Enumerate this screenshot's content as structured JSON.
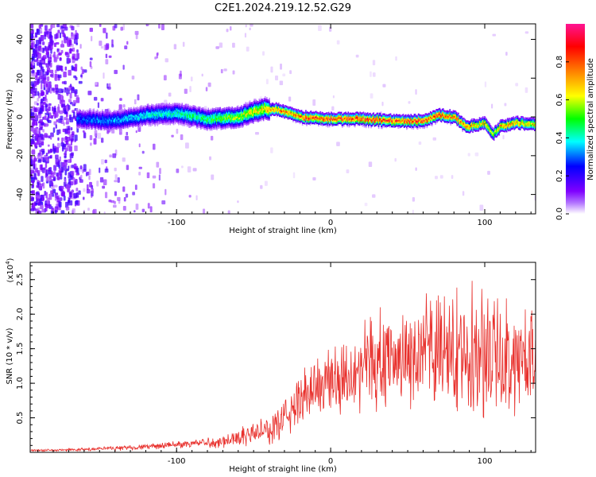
{
  "title": "C2E1.2024.219.12.52.G29",
  "colors": {
    "snr_line": "#e8302c",
    "axis": "#000000"
  },
  "chart_data": [
    {
      "type": "heatmap",
      "name": "spectrogram",
      "xlabel": "Height of straight line (km)",
      "ylabel": "Frequency (Hz)",
      "xlim": [
        -195,
        133
      ],
      "ylim": [
        -50,
        48
      ],
      "xticks": [
        -100,
        0,
        100
      ],
      "yticks": [
        -40,
        -20,
        0,
        20,
        40
      ],
      "xtick_labels": [
        "-100",
        "0",
        "100"
      ],
      "ytick_labels": [
        "-40",
        "-20",
        "0",
        "20",
        "40"
      ],
      "colorbar": {
        "label": "Normalized spectral amplitude",
        "range": [
          0,
          1
        ],
        "ticks": [
          0.0,
          0.2,
          0.4,
          0.6,
          0.8
        ],
        "tick_labels": [
          "0.0",
          "0.2",
          "0.4",
          "0.6",
          "0.8"
        ],
        "colormap": [
          "#ffffff",
          "#7f00ff",
          "#0000ff",
          "#00ffff",
          "#00ff00",
          "#ffff00",
          "#ff8000",
          "#ff0000",
          "#ff1493"
        ]
      },
      "ridge": {
        "x": [
          -165,
          -140,
          -120,
          -100,
          -80,
          -60,
          -45,
          -35,
          -20,
          0,
          20,
          40,
          60,
          70,
          80,
          88,
          95,
          100,
          105,
          110,
          120,
          133
        ],
        "freq_hz": [
          -1,
          -2,
          1,
          2,
          -1,
          0,
          4,
          4,
          0,
          -1,
          -1,
          -2,
          -2,
          1,
          0,
          -5,
          -4,
          -3,
          -9,
          -5,
          -3,
          -4
        ],
        "peak_amplitude": [
          0.3,
          0.35,
          0.4,
          0.45,
          0.5,
          0.6,
          0.7,
          0.8,
          0.85,
          0.9,
          0.9,
          0.88,
          0.9,
          0.88,
          0.85,
          0.8,
          0.7,
          0.75,
          0.6,
          0.75,
          0.75,
          0.7
        ]
      }
    },
    {
      "type": "line",
      "name": "snr",
      "xlabel": "Height of straight line (km)",
      "ylabel": "SNR (10 * v/v)",
      "y_multiplier": "(x10",
      "y_multiplier_exp": "4",
      "y_multiplier_close": ")",
      "xlim": [
        -195,
        133
      ],
      "ylim": [
        0,
        2.75
      ],
      "xticks": [
        -100,
        0,
        100
      ],
      "yticks": [
        0.5,
        1.0,
        1.5,
        2.0,
        2.5
      ],
      "xtick_labels": [
        "-100",
        "0",
        "100"
      ],
      "ytick_labels": [
        "0.5",
        "1.0",
        "1.5",
        "2.0",
        "2.5"
      ],
      "series": [
        {
          "name": "SNR",
          "x": [
            -195,
            -180,
            -160,
            -140,
            -120,
            -100,
            -90,
            -80,
            -70,
            -60,
            -50,
            -45,
            -40,
            -35,
            -30,
            -25,
            -20,
            -15,
            -10,
            -5,
            0,
            10,
            20,
            30,
            40,
            50,
            60,
            70,
            80,
            90,
            100,
            110,
            120,
            133
          ],
          "y": [
            0.03,
            0.03,
            0.04,
            0.06,
            0.08,
            0.11,
            0.13,
            0.14,
            0.16,
            0.22,
            0.28,
            0.3,
            0.32,
            0.4,
            0.5,
            0.62,
            0.75,
            0.88,
            0.95,
            1.0,
            1.05,
            1.15,
            1.25,
            1.32,
            1.35,
            1.4,
            1.42,
            1.45,
            1.45,
            1.5,
            1.45,
            1.4,
            1.35,
            1.35
          ],
          "spread": [
            0.02,
            0.02,
            0.03,
            0.04,
            0.05,
            0.06,
            0.07,
            0.09,
            0.12,
            0.16,
            0.2,
            0.22,
            0.25,
            0.3,
            0.35,
            0.4,
            0.45,
            0.5,
            0.55,
            0.6,
            0.65,
            0.7,
            0.75,
            0.8,
            0.85,
            0.9,
            0.95,
            1.0,
            1.05,
            1.1,
            1.1,
            1.05,
            1.0,
            1.0
          ]
        }
      ]
    }
  ]
}
